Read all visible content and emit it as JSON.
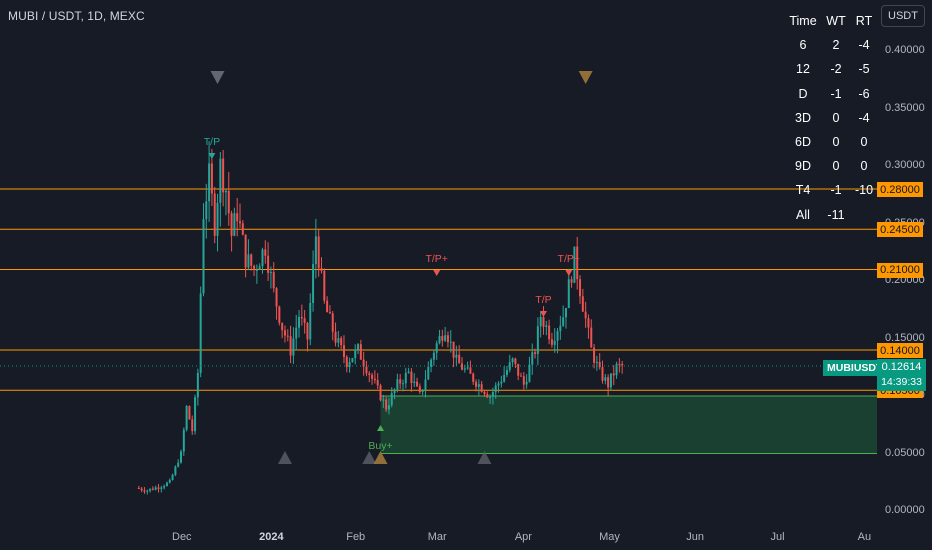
{
  "header": {
    "symbol_title": "MUBI / USDT, 1D, MEXC"
  },
  "currency_button": {
    "label": "USDT"
  },
  "timeframe_table": {
    "headers": [
      "Time",
      "WT",
      "RT"
    ],
    "rows": [
      [
        "6",
        "2",
        "-4"
      ],
      [
        "12",
        "-2",
        "-5"
      ],
      [
        "D",
        "-1",
        "-6"
      ],
      [
        "3D",
        "0",
        "-4"
      ],
      [
        "6D",
        "0",
        "0"
      ],
      [
        "9D",
        "0",
        "0"
      ],
      [
        "T4",
        "-1",
        "-10"
      ],
      [
        "All",
        "-11",
        ""
      ]
    ]
  },
  "symbol_tag": "MUBIUSDT",
  "current_price": {
    "price": "0.12614",
    "countdown": "14:39:33"
  },
  "colors": {
    "up": "#26a69a",
    "down": "#ef5350",
    "level": "#ff9800",
    "zone": "#1e5e3a",
    "zone_border": "#4caf50",
    "background": "#171b26"
  },
  "chart_data": {
    "type": "candlestick",
    "symbol": "MUBI / USDT",
    "timeframe": "1D",
    "exchange": "MEXC",
    "ylim": [
      0,
      0.42
    ],
    "y_ticks": [
      "0.40000",
      "0.35000",
      "0.30000",
      "0.25000",
      "0.20000",
      "0.15000",
      "0.10000",
      "0.05000",
      "0.00000"
    ],
    "x_ticks": [
      "Dec",
      "2024",
      "Feb",
      "Mar",
      "Apr",
      "May",
      "Jun",
      "Jul",
      "Au"
    ],
    "horizontal_levels": [
      {
        "price": 0.28,
        "label": "0.28000"
      },
      {
        "price": 0.245,
        "label": "0.24500"
      },
      {
        "price": 0.21,
        "label": "0.21000"
      },
      {
        "price": 0.14,
        "label": "0.14000"
      },
      {
        "price": 0.105,
        "label": "0.10500"
      }
    ],
    "buy_zone": {
      "top": 0.1,
      "bottom": 0.05,
      "from": "2024-02-10"
    },
    "series_close": [
      [
        "2023-11-16",
        0.02
      ],
      [
        "2023-11-20",
        0.018
      ],
      [
        "2023-11-24",
        0.021
      ],
      [
        "2023-11-28",
        0.025
      ],
      [
        "2023-12-02",
        0.05
      ],
      [
        "2023-12-04",
        0.09
      ],
      [
        "2023-12-06",
        0.07
      ],
      [
        "2023-12-08",
        0.12
      ],
      [
        "2023-12-10",
        0.26
      ],
      [
        "2023-12-12",
        0.29
      ],
      [
        "2023-12-14",
        0.25
      ],
      [
        "2023-12-16",
        0.3
      ],
      [
        "2023-12-18",
        0.28
      ],
      [
        "2023-12-20",
        0.24
      ],
      [
        "2023-12-22",
        0.26
      ],
      [
        "2023-12-25",
        0.22
      ],
      [
        "2023-12-28",
        0.21
      ],
      [
        "2024-01-01",
        0.23
      ],
      [
        "2024-01-04",
        0.19
      ],
      [
        "2024-01-07",
        0.16
      ],
      [
        "2024-01-10",
        0.14
      ],
      [
        "2024-01-13",
        0.17
      ],
      [
        "2024-01-16",
        0.15
      ],
      [
        "2024-01-19",
        0.24
      ],
      [
        "2024-01-22",
        0.18
      ],
      [
        "2024-01-26",
        0.15
      ],
      [
        "2024-01-30",
        0.13
      ],
      [
        "2024-02-03",
        0.14
      ],
      [
        "2024-02-07",
        0.12
      ],
      [
        "2024-02-11",
        0.1
      ],
      [
        "2024-02-13",
        0.09
      ],
      [
        "2024-02-17",
        0.11
      ],
      [
        "2024-02-21",
        0.12
      ],
      [
        "2024-02-25",
        0.1
      ],
      [
        "2024-03-01",
        0.14
      ],
      [
        "2024-03-05",
        0.16
      ],
      [
        "2024-03-09",
        0.13
      ],
      [
        "2024-03-13",
        0.12
      ],
      [
        "2024-03-17",
        0.11
      ],
      [
        "2024-03-21",
        0.1
      ],
      [
        "2024-03-25",
        0.115
      ],
      [
        "2024-03-29",
        0.13
      ],
      [
        "2024-04-02",
        0.11
      ],
      [
        "2024-04-06",
        0.14
      ],
      [
        "2024-04-08",
        0.17
      ],
      [
        "2024-04-12",
        0.15
      ],
      [
        "2024-04-16",
        0.17
      ],
      [
        "2024-04-20",
        0.22
      ],
      [
        "2024-04-23",
        0.18
      ],
      [
        "2024-04-26",
        0.14
      ],
      [
        "2024-04-29",
        0.12
      ],
      [
        "2024-05-02",
        0.11
      ],
      [
        "2024-05-05",
        0.125
      ],
      [
        "2024-05-07",
        0.126
      ]
    ],
    "annotations": [
      {
        "date": "2023-12-12",
        "text": "T/P"
      },
      {
        "date": "2024-03-01",
        "text": "T/P+"
      },
      {
        "date": "2024-04-08",
        "text": "T/P"
      },
      {
        "date": "2024-04-17",
        "text": "T/P+"
      },
      {
        "date": "2024-02-10",
        "text": "Buy+"
      }
    ]
  }
}
